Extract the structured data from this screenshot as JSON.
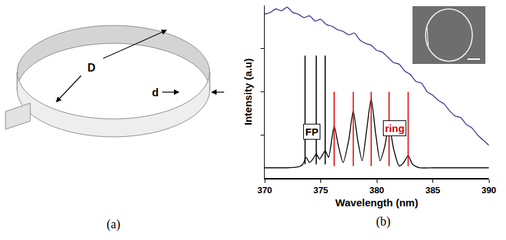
{
  "diagram": {
    "caption": "(a)",
    "diameter_label": "D",
    "width_label": "d"
  },
  "chart_caption": "(b)",
  "chart_data": {
    "type": "line",
    "x_title": "Wavelength (nm)",
    "y_title": "Intensity (a.u)",
    "xlim": [
      370,
      390
    ],
    "xticks": [
      370,
      375,
      380,
      385,
      390
    ],
    "ylim": [
      0,
      1
    ],
    "yticks": [
      0.25,
      0.5,
      0.75
    ],
    "tick_labels": "x",
    "grid": false,
    "series": [
      {
        "color": "#3b3b9a",
        "x": [
          370,
          370.5,
          371,
          371.5,
          372,
          372.5,
          373,
          373.5,
          374,
          374.5,
          375,
          375.5,
          376,
          376.5,
          377,
          377.5,
          378,
          378.5,
          379,
          379.5,
          380,
          380.5,
          381,
          381.5,
          382,
          382.5,
          383,
          383.5,
          384,
          384.5,
          385,
          385.5,
          386,
          386.5,
          387,
          387.5,
          388,
          388.5,
          389,
          389.5,
          390
        ],
        "values": [
          0.95,
          0.96,
          0.98,
          0.97,
          0.99,
          0.96,
          0.95,
          0.93,
          0.94,
          0.91,
          0.92,
          0.89,
          0.88,
          0.86,
          0.85,
          0.83,
          0.84,
          0.8,
          0.78,
          0.77,
          0.74,
          0.73,
          0.7,
          0.67,
          0.66,
          0.62,
          0.6,
          0.56,
          0.55,
          0.5,
          0.48,
          0.45,
          0.43,
          0.39,
          0.36,
          0.35,
          0.31,
          0.29,
          0.25,
          0.22,
          0.19
        ]
      },
      {
        "color": "#000000",
        "x": [
          370,
          371,
          372,
          373,
          373.4,
          373.7,
          374.0,
          374.3,
          374.6,
          374.9,
          375.2,
          375.4,
          375.7,
          376.2,
          376.6,
          377.0,
          377.5,
          377.9,
          378.3,
          378.7,
          379.1,
          379.5,
          379.9,
          380.3,
          380.7,
          381.1,
          381.5,
          382.0,
          382.4,
          382.8,
          383.2,
          383.8,
          385,
          387,
          390
        ],
        "values": [
          0.06,
          0.06,
          0.06,
          0.065,
          0.08,
          0.12,
          0.09,
          0.11,
          0.14,
          0.11,
          0.14,
          0.16,
          0.12,
          0.3,
          0.18,
          0.09,
          0.22,
          0.39,
          0.22,
          0.1,
          0.28,
          0.46,
          0.26,
          0.1,
          0.18,
          0.31,
          0.17,
          0.07,
          0.09,
          0.13,
          0.08,
          0.06,
          0.06,
          0.06,
          0.06
        ]
      }
    ],
    "mode_lines": [
      {
        "color": "#000000",
        "x": [
          373.6,
          374.6,
          375.4
        ],
        "y0": 0.08,
        "y1": 0.71
      },
      {
        "color": "#e00000",
        "x": [
          376.2,
          377.9,
          379.5,
          381.1,
          382.8
        ],
        "y0": 0.07,
        "y1": 0.5
      }
    ],
    "annotations": [
      {
        "text": "FP",
        "x": 374.2,
        "y": 0.27,
        "color": "#000000"
      },
      {
        "text": "ring",
        "x": 381.6,
        "y": 0.29,
        "color": "#e00000"
      }
    ]
  }
}
